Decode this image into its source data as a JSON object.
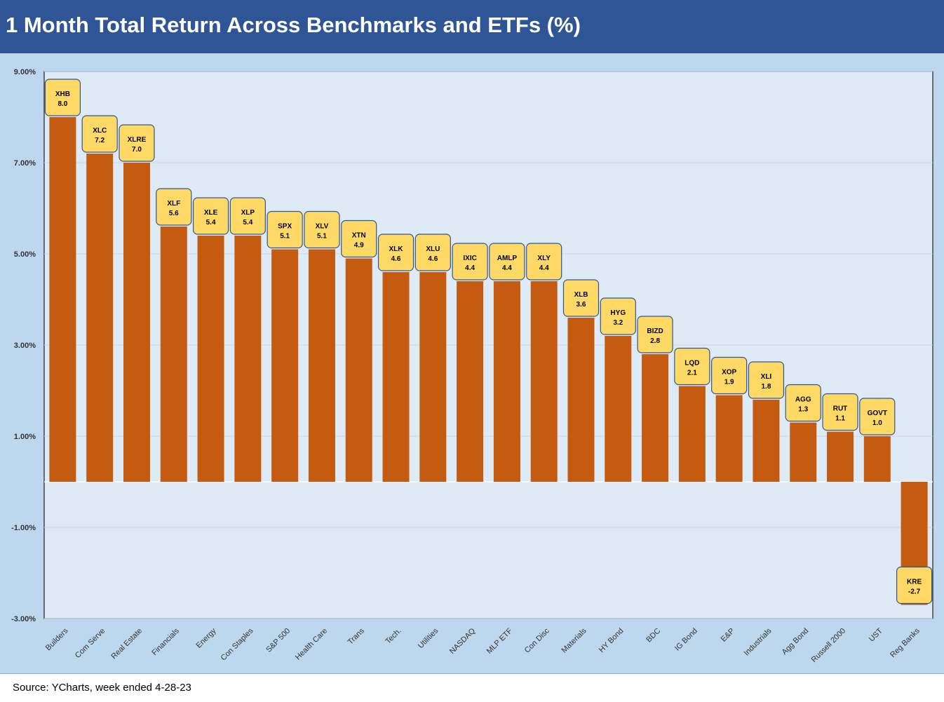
{
  "header": {
    "title": "1 Month Total Return Across Benchmarks and ETFs (%)"
  },
  "footer": {
    "source": "Source: YCharts, week ended 4-28-23"
  },
  "colors": {
    "header_bg": "#2f5597",
    "page_bg": "#bdd7ee",
    "plot_bg": "#deebf7",
    "bar": "#c55a11",
    "label_box": "#ffd966",
    "label_border": "#2f5597"
  },
  "chart_data": {
    "type": "bar",
    "title": "1 Month Total Return Across Benchmarks and ETFs (%)",
    "xlabel": "",
    "ylabel": "",
    "ylim": [
      -3,
      9
    ],
    "yticks": [
      9,
      7,
      5,
      3,
      1,
      -1,
      -3
    ],
    "ytick_labels": [
      "9.00%",
      "7.00%",
      "5.00%",
      "3.00%",
      "1.00%",
      "-1.00%",
      "-3.00%"
    ],
    "grid": true,
    "legend": "none",
    "categories": [
      "Builders",
      "Com Serve",
      "Real Estate",
      "Financials",
      "Energy",
      "Con Staples",
      "S&P 500",
      "Health Care",
      "Trans",
      "Tech.",
      "Utilities",
      "NASDAQ",
      "MLP ETF",
      "Con Disc",
      "Materials",
      "HY Bond",
      "BDC",
      "IG Bond",
      "E&P",
      "Industrials",
      "Agg Bond",
      "Russell 2000",
      "UST",
      "Reg Banks"
    ],
    "tickers": [
      "XHB",
      "XLC",
      "XLRE",
      "XLF",
      "XLE",
      "XLP",
      "SPX",
      "XLV",
      "XTN",
      "XLK",
      "XLU",
      "IXIC",
      "AMLP",
      "XLY",
      "XLB",
      "HYG",
      "BIZD",
      "LQD",
      "XOP",
      "XLI",
      "AGG",
      "RUT",
      "GOVT",
      "KRE"
    ],
    "values": [
      8.0,
      7.2,
      7.0,
      5.6,
      5.4,
      5.4,
      5.1,
      5.1,
      4.9,
      4.6,
      4.6,
      4.4,
      4.4,
      4.4,
      3.6,
      3.2,
      2.8,
      2.1,
      1.9,
      1.8,
      1.3,
      1.1,
      1.0,
      -2.7
    ],
    "value_labels": [
      "8.0",
      "7.2",
      "7.0",
      "5.6",
      "5.4",
      "5.4",
      "5.1",
      "5.1",
      "4.9",
      "4.6",
      "4.6",
      "4.4",
      "4.4",
      "4.4",
      "3.6",
      "3.2",
      "2.8",
      "2.1",
      "1.9",
      "1.8",
      "1.3",
      "1.1",
      "1.0",
      "-2.7"
    ]
  }
}
